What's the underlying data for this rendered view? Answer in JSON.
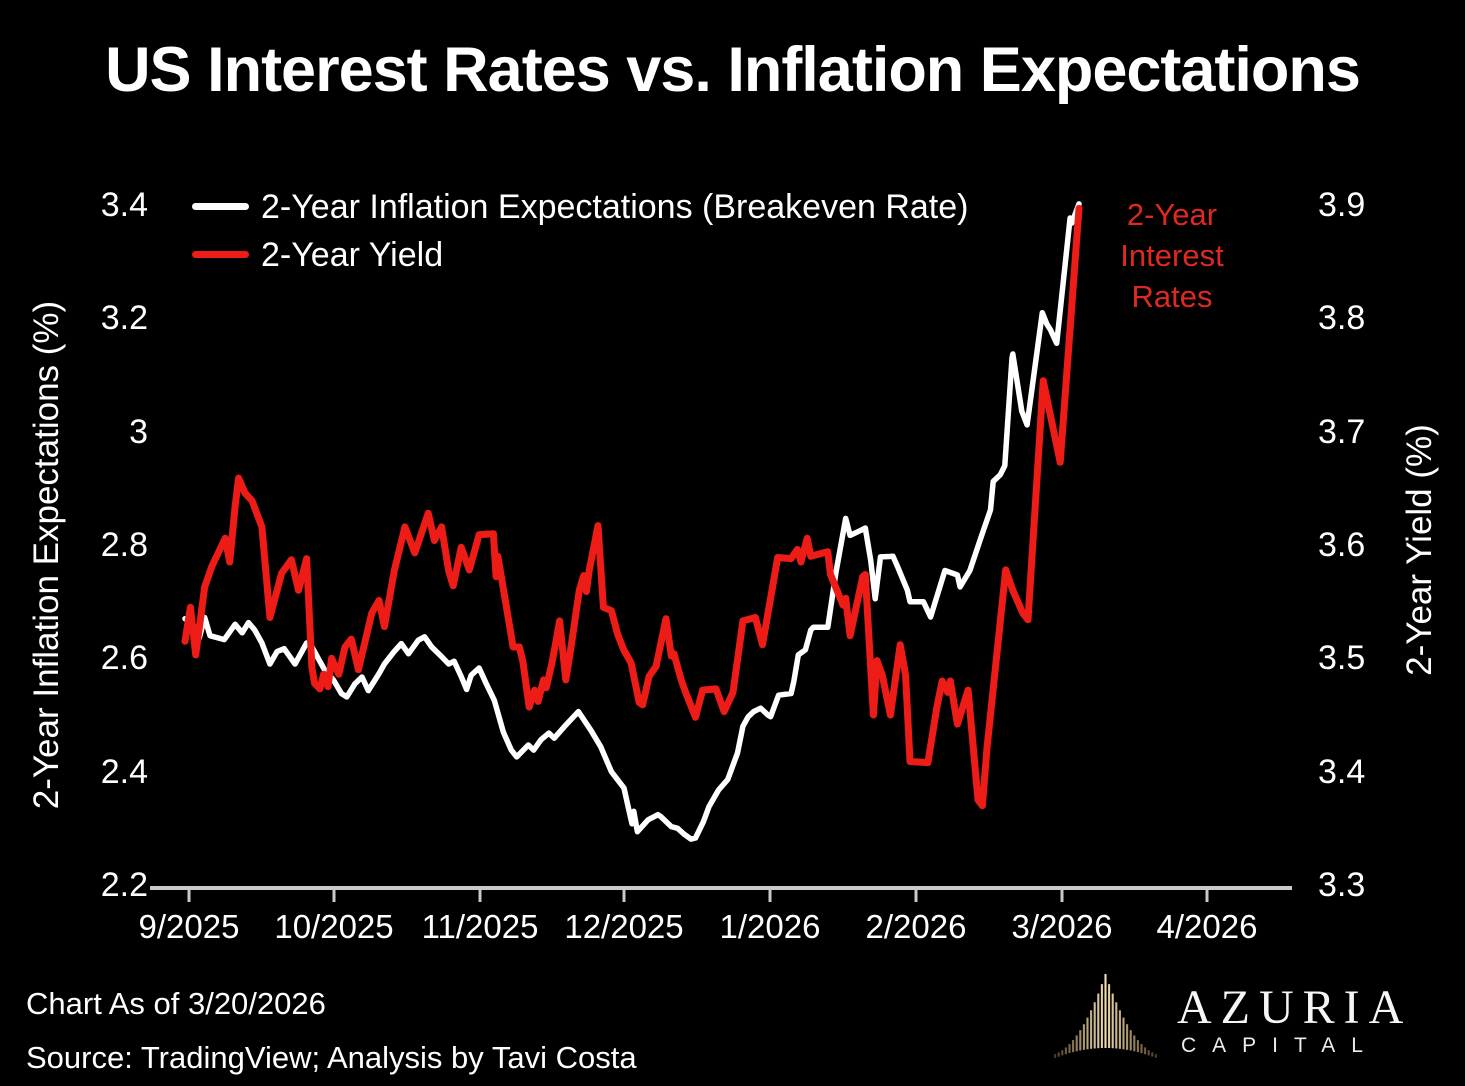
{
  "title": "US Interest Rates vs. Inflation Expectations",
  "legend": {
    "items": [
      {
        "label": "2-Year Inflation Expectations (Breakeven Rate)",
        "color": "#ffffff"
      },
      {
        "label": "2-Year Yield",
        "color": "#ed1c16"
      }
    ]
  },
  "annotation": {
    "lines": [
      "2-Year",
      "Interest",
      "Rates"
    ],
    "color": "#de2921"
  },
  "axes": {
    "left": {
      "title": "2-Year Inflation Expectations (%)",
      "tick_labels": [
        "3.4",
        "3.2",
        "3",
        "2.8",
        "2.6",
        "2.4",
        "2.2"
      ],
      "tick_values": [
        3.4,
        3.2,
        3.0,
        2.8,
        2.6,
        2.4,
        2.2
      ],
      "range": [
        2.2,
        3.4
      ]
    },
    "right": {
      "title": "2-Year Yield (%)",
      "tick_labels": [
        "3.9",
        "3.8",
        "3.7",
        "3.6",
        "3.5",
        "3.4",
        "3.3"
      ],
      "tick_values": [
        3.9,
        3.8,
        3.7,
        3.6,
        3.5,
        3.4,
        3.3
      ],
      "range": [
        3.3,
        3.9
      ]
    },
    "x": {
      "tick_labels": [
        "9/2025",
        "10/2025",
        "11/2025",
        "12/2025",
        "1/2026",
        "2/2026",
        "3/2026",
        "4/2026"
      ]
    }
  },
  "footer": {
    "as_of": "Chart As of 3/20/2026",
    "source": "Source: TradingView; Analysis by Tavi Costa"
  },
  "logo": {
    "brand": "AZURIA",
    "sub": "CAPITAL",
    "icon_colors": {
      "center": "#f0ddb2",
      "edge": "#4f3a1e"
    }
  },
  "chart_data": {
    "type": "line",
    "title": "US Interest Rates vs. Inflation Expectations",
    "x_unit": "fraction of time axis from 2025-09-01 to 2026-03-20 (as-of date)",
    "x_tick_labels": [
      "9/2025",
      "10/2025",
      "11/2025",
      "12/2025",
      "1/2026",
      "2/2026",
      "3/2026",
      "4/2026"
    ],
    "left_ylabel": "2-Year Inflation Expectations (%)",
    "right_ylabel": "2-Year Yield (%)",
    "left_ylim": [
      2.2,
      3.4
    ],
    "right_ylim": [
      3.3,
      3.9
    ],
    "grid": false,
    "legend_position": "top-left",
    "series": [
      {
        "name": "2-Year Inflation Expectations (Breakeven Rate)",
        "axis": "left",
        "color": "#ffffff",
        "points": [
          [
            0.0,
            2.67
          ],
          [
            0.008,
            2.662
          ],
          [
            0.016,
            2.636
          ],
          [
            0.022,
            2.672
          ],
          [
            0.028,
            2.64
          ],
          [
            0.044,
            2.633
          ],
          [
            0.056,
            2.66
          ],
          [
            0.064,
            2.645
          ],
          [
            0.071,
            2.663
          ],
          [
            0.078,
            2.65
          ],
          [
            0.086,
            2.627
          ],
          [
            0.095,
            2.59
          ],
          [
            0.103,
            2.612
          ],
          [
            0.111,
            2.617
          ],
          [
            0.123,
            2.59
          ],
          [
            0.136,
            2.627
          ],
          [
            0.142,
            2.62
          ],
          [
            0.156,
            2.58
          ],
          [
            0.166,
            2.562
          ],
          [
            0.175,
            2.538
          ],
          [
            0.181,
            2.532
          ],
          [
            0.19,
            2.555
          ],
          [
            0.198,
            2.567
          ],
          [
            0.205,
            2.543
          ],
          [
            0.217,
            2.573
          ],
          [
            0.223,
            2.59
          ],
          [
            0.234,
            2.612
          ],
          [
            0.242,
            2.626
          ],
          [
            0.25,
            2.608
          ],
          [
            0.261,
            2.632
          ],
          [
            0.268,
            2.638
          ],
          [
            0.276,
            2.62
          ],
          [
            0.287,
            2.603
          ],
          [
            0.295,
            2.59
          ],
          [
            0.301,
            2.595
          ],
          [
            0.309,
            2.568
          ],
          [
            0.315,
            2.545
          ],
          [
            0.32,
            2.57
          ],
          [
            0.329,
            2.583
          ],
          [
            0.337,
            2.555
          ],
          [
            0.346,
            2.526
          ],
          [
            0.356,
            2.47
          ],
          [
            0.365,
            2.438
          ],
          [
            0.371,
            2.426
          ],
          [
            0.384,
            2.447
          ],
          [
            0.39,
            2.438
          ],
          [
            0.398,
            2.456
          ],
          [
            0.407,
            2.468
          ],
          [
            0.413,
            2.459
          ],
          [
            0.424,
            2.479
          ],
          [
            0.44,
            2.506
          ],
          [
            0.454,
            2.473
          ],
          [
            0.465,
            2.444
          ],
          [
            0.477,
            2.4
          ],
          [
            0.491,
            2.371
          ],
          [
            0.497,
            2.329
          ],
          [
            0.5,
            2.308
          ],
          [
            0.502,
            2.33
          ],
          [
            0.506,
            2.294
          ],
          [
            0.518,
            2.315
          ],
          [
            0.529,
            2.324
          ],
          [
            0.532,
            2.321
          ],
          [
            0.544,
            2.303
          ],
          [
            0.551,
            2.3
          ],
          [
            0.558,
            2.29
          ],
          [
            0.566,
            2.281
          ],
          [
            0.571,
            2.283
          ],
          [
            0.58,
            2.312
          ],
          [
            0.586,
            2.338
          ],
          [
            0.597,
            2.368
          ],
          [
            0.607,
            2.386
          ],
          [
            0.618,
            2.433
          ],
          [
            0.624,
            2.48
          ],
          [
            0.63,
            2.497
          ],
          [
            0.636,
            2.506
          ],
          [
            0.644,
            2.512
          ],
          [
            0.652,
            2.5
          ],
          [
            0.655,
            2.497
          ],
          [
            0.664,
            2.535
          ],
          [
            0.678,
            2.538
          ],
          [
            0.681,
            2.559
          ],
          [
            0.686,
            2.606
          ],
          [
            0.694,
            2.615
          ],
          [
            0.7,
            2.65
          ],
          [
            0.703,
            2.655
          ],
          [
            0.719,
            2.655
          ],
          [
            0.728,
            2.75
          ],
          [
            0.739,
            2.847
          ],
          [
            0.744,
            2.817
          ],
          [
            0.756,
            2.826
          ],
          [
            0.761,
            2.83
          ],
          [
            0.767,
            2.773
          ],
          [
            0.772,
            2.705
          ],
          [
            0.778,
            2.779
          ],
          [
            0.792,
            2.78
          ],
          [
            0.797,
            2.762
          ],
          [
            0.808,
            2.72
          ],
          [
            0.811,
            2.7
          ],
          [
            0.826,
            2.7
          ],
          [
            0.834,
            2.673
          ],
          [
            0.85,
            2.755
          ],
          [
            0.864,
            2.747
          ],
          [
            0.867,
            2.726
          ],
          [
            0.878,
            2.755
          ],
          [
            0.89,
            2.812
          ],
          [
            0.901,
            2.862
          ],
          [
            0.904,
            2.912
          ],
          [
            0.912,
            2.924
          ],
          [
            0.917,
            2.94
          ],
          [
            0.925,
            3.13
          ],
          [
            0.926,
            3.137
          ],
          [
            0.936,
            3.036
          ],
          [
            0.942,
            3.012
          ],
          [
            0.959,
            3.21
          ],
          [
            0.964,
            3.19
          ],
          [
            0.968,
            3.18
          ],
          [
            0.975,
            3.156
          ],
          [
            0.99,
            3.377
          ],
          [
            0.992,
            3.368
          ],
          [
            1.0,
            3.402
          ]
        ]
      },
      {
        "name": "2-Year Yield",
        "axis": "right",
        "color": "#ed1c16",
        "points": [
          [
            0.0,
            3.515
          ],
          [
            0.006,
            3.545
          ],
          [
            0.012,
            3.503
          ],
          [
            0.022,
            3.563
          ],
          [
            0.03,
            3.581
          ],
          [
            0.045,
            3.606
          ],
          [
            0.05,
            3.585
          ],
          [
            0.056,
            3.634
          ],
          [
            0.06,
            3.659
          ],
          [
            0.067,
            3.646
          ],
          [
            0.075,
            3.639
          ],
          [
            0.086,
            3.616
          ],
          [
            0.095,
            3.536
          ],
          [
            0.108,
            3.575
          ],
          [
            0.119,
            3.587
          ],
          [
            0.127,
            3.56
          ],
          [
            0.136,
            3.588
          ],
          [
            0.142,
            3.492
          ],
          [
            0.145,
            3.478
          ],
          [
            0.151,
            3.473
          ],
          [
            0.155,
            3.486
          ],
          [
            0.16,
            3.475
          ],
          [
            0.164,
            3.5
          ],
          [
            0.172,
            3.486
          ],
          [
            0.179,
            3.51
          ],
          [
            0.186,
            3.517
          ],
          [
            0.194,
            3.49
          ],
          [
            0.209,
            3.54
          ],
          [
            0.217,
            3.551
          ],
          [
            0.223,
            3.528
          ],
          [
            0.234,
            3.577
          ],
          [
            0.246,
            3.616
          ],
          [
            0.257,
            3.593
          ],
          [
            0.272,
            3.628
          ],
          [
            0.279,
            3.604
          ],
          [
            0.287,
            3.616
          ],
          [
            0.295,
            3.577
          ],
          [
            0.3,
            3.564
          ],
          [
            0.309,
            3.598
          ],
          [
            0.318,
            3.578
          ],
          [
            0.329,
            3.609
          ],
          [
            0.345,
            3.61
          ],
          [
            0.348,
            3.572
          ],
          [
            0.35,
            3.59
          ],
          [
            0.359,
            3.548
          ],
          [
            0.367,
            3.51
          ],
          [
            0.374,
            3.51
          ],
          [
            0.378,
            3.497
          ],
          [
            0.385,
            3.457
          ],
          [
            0.391,
            3.472
          ],
          [
            0.395,
            3.462
          ],
          [
            0.401,
            3.481
          ],
          [
            0.404,
            3.474
          ],
          [
            0.41,
            3.494
          ],
          [
            0.415,
            3.515
          ],
          [
            0.419,
            3.533
          ],
          [
            0.426,
            3.481
          ],
          [
            0.432,
            3.511
          ],
          [
            0.441,
            3.56
          ],
          [
            0.446,
            3.573
          ],
          [
            0.449,
            3.559
          ],
          [
            0.452,
            3.577
          ],
          [
            0.462,
            3.617
          ],
          [
            0.468,
            3.545
          ],
          [
            0.477,
            3.542
          ],
          [
            0.484,
            3.521
          ],
          [
            0.491,
            3.507
          ],
          [
            0.499,
            3.496
          ],
          [
            0.508,
            3.461
          ],
          [
            0.512,
            3.459
          ],
          [
            0.519,
            3.484
          ],
          [
            0.527,
            3.493
          ],
          [
            0.538,
            3.535
          ],
          [
            0.544,
            3.502
          ],
          [
            0.547,
            3.504
          ],
          [
            0.555,
            3.481
          ],
          [
            0.56,
            3.47
          ],
          [
            0.571,
            3.448
          ],
          [
            0.579,
            3.472
          ],
          [
            0.594,
            3.473
          ],
          [
            0.603,
            3.453
          ],
          [
            0.613,
            3.47
          ],
          [
            0.624,
            3.533
          ],
          [
            0.638,
            3.536
          ],
          [
            0.646,
            3.512
          ],
          [
            0.663,
            3.589
          ],
          [
            0.678,
            3.588
          ],
          [
            0.685,
            3.596
          ],
          [
            0.689,
            3.585
          ],
          [
            0.696,
            3.606
          ],
          [
            0.7,
            3.59
          ],
          [
            0.719,
            3.594
          ],
          [
            0.722,
            3.574
          ],
          [
            0.736,
            3.547
          ],
          [
            0.739,
            3.553
          ],
          [
            0.744,
            3.52
          ],
          [
            0.758,
            3.572
          ],
          [
            0.761,
            3.574
          ],
          [
            0.77,
            3.45
          ],
          [
            0.774,
            3.498
          ],
          [
            0.78,
            3.485
          ],
          [
            0.789,
            3.45
          ],
          [
            0.8,
            3.512
          ],
          [
            0.806,
            3.485
          ],
          [
            0.811,
            3.409
          ],
          [
            0.831,
            3.408
          ],
          [
            0.841,
            3.457
          ],
          [
            0.847,
            3.48
          ],
          [
            0.853,
            3.47
          ],
          [
            0.856,
            3.48
          ],
          [
            0.864,
            3.442
          ],
          [
            0.876,
            3.472
          ],
          [
            0.887,
            3.375
          ],
          [
            0.892,
            3.37
          ],
          [
            0.897,
            3.42
          ],
          [
            0.918,
            3.578
          ],
          [
            0.926,
            3.56
          ],
          [
            0.937,
            3.54
          ],
          [
            0.943,
            3.534
          ],
          [
            0.96,
            3.745
          ],
          [
            0.979,
            3.673
          ],
          [
            1.0,
            3.897
          ]
        ]
      }
    ]
  }
}
